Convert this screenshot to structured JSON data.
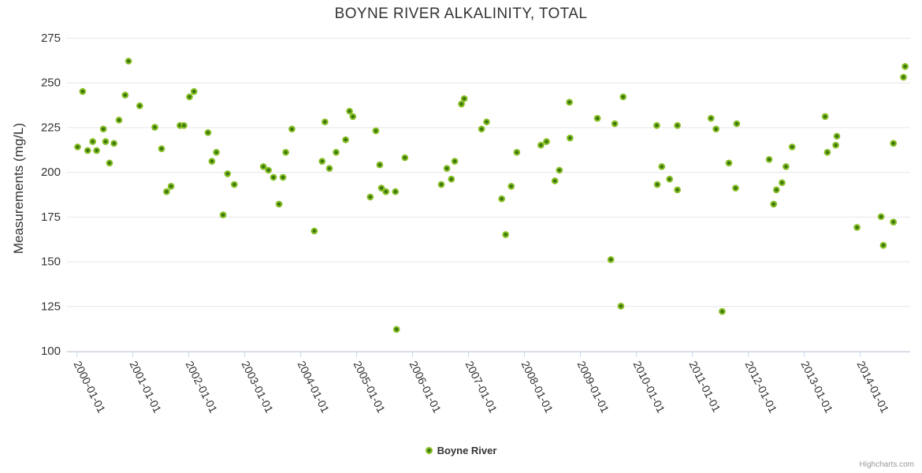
{
  "title": "BOYNE RIVER ALKALINITY, TOTAL",
  "legend": {
    "series_label": "Boyne River"
  },
  "credits": "Highcharts.com",
  "colors": {
    "point": "#84bb21",
    "point_core": "#33700e",
    "grid": "#e6e6e6",
    "axis_line": "#ccd6eb",
    "text": "#333333",
    "credits": "#999999"
  },
  "chart_data": {
    "type": "scatter",
    "title": "BOYNE RIVER ALKALINITY, TOTAL",
    "xlabel": "",
    "ylabel": "Measurements (mg/L)",
    "ylim": [
      100,
      275
    ],
    "y_ticks": [
      100,
      125,
      150,
      175,
      200,
      225,
      250,
      275
    ],
    "x_tick_labels": [
      "2000-01-01",
      "2001-01-01",
      "2002-01-01",
      "2003-01-01",
      "2004-01-01",
      "2005-01-01",
      "2006-01-01",
      "2007-01-01",
      "2008-01-01",
      "2009-01-01",
      "2010-01-01",
      "2011-01-01",
      "2012-01-01",
      "2013-01-01",
      "2014-01-01"
    ],
    "xlim_years": [
      1999.83,
      2014.9
    ],
    "grid": true,
    "legend_position": "bottom",
    "series": [
      {
        "name": "Boyne River",
        "points": [
          [
            2000.02,
            214
          ],
          [
            2000.11,
            245
          ],
          [
            2000.2,
            212
          ],
          [
            2000.29,
            217
          ],
          [
            2000.36,
            212
          ],
          [
            2000.48,
            224
          ],
          [
            2000.52,
            217
          ],
          [
            2000.59,
            205
          ],
          [
            2000.67,
            216
          ],
          [
            2000.76,
            229
          ],
          [
            2000.87,
            243
          ],
          [
            2000.93,
            262
          ],
          [
            2001.13,
            237
          ],
          [
            2001.4,
            225
          ],
          [
            2001.52,
            213
          ],
          [
            2001.61,
            189
          ],
          [
            2001.69,
            192
          ],
          [
            2001.85,
            226
          ],
          [
            2001.92,
            226
          ],
          [
            2002.02,
            242
          ],
          [
            2002.1,
            245
          ],
          [
            2002.35,
            222
          ],
          [
            2002.42,
            206
          ],
          [
            2002.5,
            211
          ],
          [
            2002.62,
            176
          ],
          [
            2002.7,
            199
          ],
          [
            2002.82,
            193
          ],
          [
            2003.34,
            203
          ],
          [
            2003.43,
            201
          ],
          [
            2003.52,
            197
          ],
          [
            2003.62,
            182
          ],
          [
            2003.69,
            197
          ],
          [
            2003.74,
            211
          ],
          [
            2003.85,
            224
          ],
          [
            2004.25,
            167
          ],
          [
            2004.39,
            206
          ],
          [
            2004.44,
            228
          ],
          [
            2004.52,
            202
          ],
          [
            2004.64,
            211
          ],
          [
            2004.81,
            218
          ],
          [
            2004.88,
            234
          ],
          [
            2004.94,
            231
          ],
          [
            2005.25,
            186
          ],
          [
            2005.35,
            223
          ],
          [
            2005.42,
            204
          ],
          [
            2005.45,
            191
          ],
          [
            2005.53,
            189
          ],
          [
            2005.7,
            189
          ],
          [
            2005.72,
            112
          ],
          [
            2005.87,
            208
          ],
          [
            2006.52,
            193
          ],
          [
            2006.62,
            202
          ],
          [
            2006.7,
            196
          ],
          [
            2006.76,
            206
          ],
          [
            2006.88,
            238
          ],
          [
            2006.93,
            241
          ],
          [
            2007.24,
            224
          ],
          [
            2007.33,
            228
          ],
          [
            2007.6,
            185
          ],
          [
            2007.67,
            165
          ],
          [
            2007.77,
            192
          ],
          [
            2007.87,
            211
          ],
          [
            2008.3,
            215
          ],
          [
            2008.4,
            217
          ],
          [
            2008.55,
            195
          ],
          [
            2008.63,
            201
          ],
          [
            2008.81,
            239
          ],
          [
            2008.82,
            219
          ],
          [
            2009.31,
            230
          ],
          [
            2009.55,
            151
          ],
          [
            2009.62,
            227
          ],
          [
            2009.73,
            125
          ],
          [
            2009.77,
            242
          ],
          [
            2010.37,
            226
          ],
          [
            2010.38,
            193
          ],
          [
            2010.46,
            203
          ],
          [
            2010.6,
            196
          ],
          [
            2010.74,
            226
          ],
          [
            2010.74,
            190
          ],
          [
            2011.34,
            230
          ],
          [
            2011.43,
            224
          ],
          [
            2011.54,
            122
          ],
          [
            2011.66,
            205
          ],
          [
            2011.78,
            191
          ],
          [
            2011.8,
            227
          ],
          [
            2012.38,
            207
          ],
          [
            2012.46,
            182
          ],
          [
            2012.51,
            190
          ],
          [
            2012.61,
            194
          ],
          [
            2012.68,
            203
          ],
          [
            2012.79,
            214
          ],
          [
            2013.38,
            231
          ],
          [
            2013.42,
            211
          ],
          [
            2013.57,
            215
          ],
          [
            2013.59,
            220
          ],
          [
            2013.95,
            169
          ],
          [
            2014.38,
            175
          ],
          [
            2014.42,
            159
          ],
          [
            2014.6,
            216
          ],
          [
            2014.6,
            172
          ],
          [
            2014.78,
            253
          ],
          [
            2014.81,
            259
          ]
        ]
      }
    ]
  }
}
